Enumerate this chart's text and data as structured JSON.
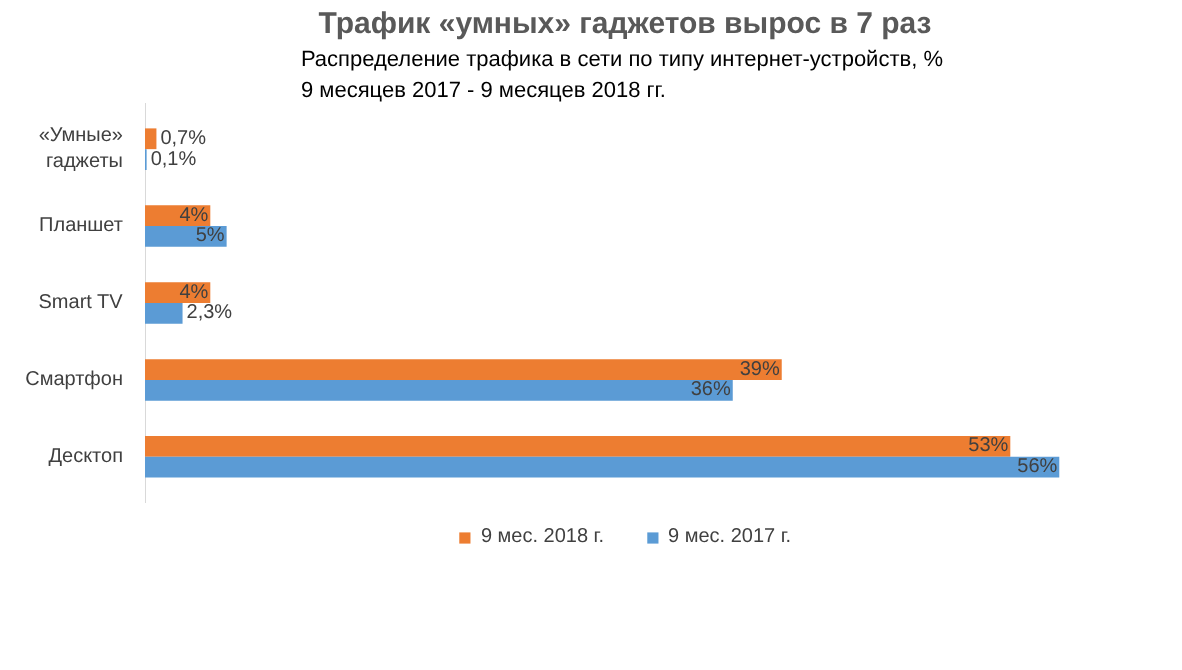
{
  "chart_data": {
    "type": "bar",
    "orientation": "horizontal",
    "title": "Трафик «умных» гаджетов вырос в 7 раз",
    "subtitle": "Распределение трафика в сети по типу интернет-устройств,  %\n9 месяцев  2017 - 9 месяцев 2018 гг.",
    "categories": [
      "«Умные» гаджеты",
      "Планшет",
      "Smart TV",
      "Смартфон",
      "Десктоп"
    ],
    "series": [
      {
        "name": "9 мес. 2018 г.",
        "color": "#ed7d31",
        "values": [
          0.7,
          4,
          4,
          39,
          53
        ],
        "value_labels": [
          "0,7%",
          "4%",
          "4%",
          "39%",
          "53%"
        ]
      },
      {
        "name": "9 мес. 2017 г.",
        "color": "#5b9bd5",
        "values": [
          0.1,
          5,
          2.3,
          36,
          56
        ],
        "value_labels": [
          "0,1%",
          "5%",
          "2,3%",
          "36%",
          "56%"
        ]
      }
    ],
    "legend": "bottom"
  }
}
